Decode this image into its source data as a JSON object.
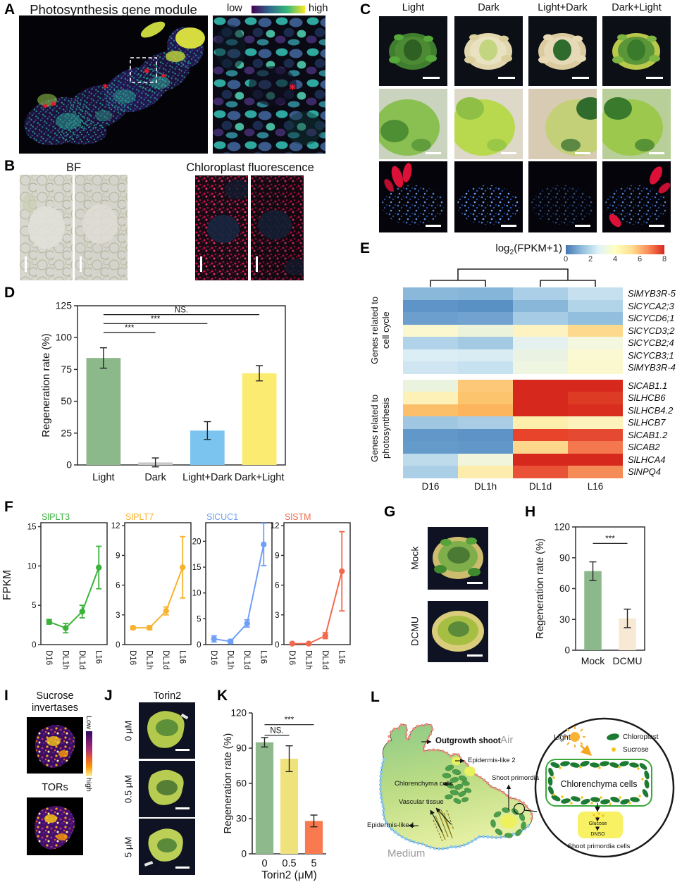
{
  "figure": {
    "panelA": {
      "label": "A",
      "title": "Photosynthesis gene module",
      "colorbar_low": "low",
      "colorbar_high": "high"
    },
    "panelB": {
      "label": "B",
      "bf_title": "BF",
      "fluo_title": "Chloroplast fluorescence"
    },
    "panelC": {
      "label": "C",
      "columns": [
        "Light",
        "Dark",
        "Light+Dark",
        "Dark+Light"
      ]
    },
    "panelD": {
      "label": "D"
    },
    "panelE": {
      "label": "E",
      "legend_prefix": "log",
      "legend_sub": "2",
      "legend_suffix": "(FPKM+1)"
    },
    "panelF": {
      "label": "F",
      "ylabel": "FPKM"
    },
    "panelG": {
      "label": "G",
      "conditions": [
        "Mock",
        "DCMU"
      ]
    },
    "panelH": {
      "label": "H"
    },
    "panelI": {
      "label": "I",
      "title1_line1": "Sucrose",
      "title1_line2": "invertases",
      "title2": "TORs",
      "colorbar_top": "Low",
      "colorbar_bottom": "high"
    },
    "panelJ": {
      "label": "J",
      "title": "Torin2",
      "doses": [
        "0 μM",
        "0.5 μM",
        "5 μM"
      ]
    },
    "panelK": {
      "label": "K"
    },
    "panelL": {
      "label": "L",
      "labels": {
        "outgrowth": "Outgrowth shoot",
        "air": "Air",
        "epi2": "Epidermis-like 2",
        "chlorenchyma": "Chlorenchyma cells",
        "primordia": "Shoot primordia",
        "vascular": "Vascular tissue",
        "epi1": "Epidermis-like 1",
        "medium": "Medium",
        "light": "Light",
        "chloroplast": "Chloroplast",
        "sucrose": "Sucrose",
        "cell": "Chlorenchyma cells",
        "glucose": "Glucose",
        "dnso": "DNSO",
        "primordia_cells": "Shoot primordia cells"
      }
    }
  },
  "chart_data": [
    {
      "id": "D",
      "type": "bar",
      "panel": "D",
      "categories": [
        "Light",
        "Dark",
        "Light+Dark",
        "Dark+Light"
      ],
      "values": [
        84,
        2,
        27,
        72
      ],
      "errors": [
        8,
        3.5,
        7,
        6
      ],
      "colors": [
        "#8cb98c",
        "#c9c9c9",
        "#7cc4f0",
        "#fbeb70"
      ],
      "ylabel": "Regeneration rate (%)",
      "ylim": [
        0,
        125
      ],
      "yticks": [
        0,
        25,
        50,
        75,
        100,
        125
      ],
      "significance": [
        {
          "from": 0,
          "to": 1,
          "label": "***",
          "y": 104
        },
        {
          "from": 0,
          "to": 2,
          "label": "***",
          "y": 111
        },
        {
          "from": 0,
          "to": 3,
          "label": "NS.",
          "y": 118
        }
      ]
    },
    {
      "id": "F1",
      "type": "line",
      "title": "SlPLT3",
      "color": "#3bb33b",
      "x": [
        "D16",
        "DL1h",
        "DL1d",
        "L16"
      ],
      "values": [
        2.9,
        2.1,
        4.2,
        9.8
      ],
      "errors": [
        0.3,
        0.6,
        0.8,
        2.7
      ],
      "ylim": [
        0,
        15.5
      ],
      "yticks": [
        0,
        5,
        10,
        15
      ]
    },
    {
      "id": "F2",
      "type": "line",
      "title": "SlPLT7",
      "color": "#f7b32b",
      "x": [
        "D16",
        "DL1h",
        "DL1d",
        "L16"
      ],
      "values": [
        1.7,
        1.7,
        3.4,
        7.8
      ],
      "errors": [
        0.15,
        0.2,
        0.4,
        3.1
      ],
      "ylim": [
        0,
        12.3
      ],
      "yticks": [
        0,
        3,
        6,
        9,
        12
      ]
    },
    {
      "id": "F3",
      "type": "line",
      "title": "SlCUC1",
      "color": "#6f9ff7",
      "x": [
        "D16",
        "DL1h",
        "DL1d",
        "L16"
      ],
      "values": [
        1.1,
        0.6,
        4.1,
        19.4
      ],
      "errors": [
        0.6,
        0.4,
        0.7,
        4.1
      ],
      "ylim": [
        0,
        23.6
      ],
      "yticks": [
        0,
        5,
        10,
        15,
        20
      ]
    },
    {
      "id": "F4",
      "type": "line",
      "title": "SlSTM",
      "color": "#f4694e",
      "x": [
        "D16",
        "DL1h",
        "DL1d",
        "L16"
      ],
      "values": [
        0.1,
        0.1,
        0.9,
        7.4
      ],
      "errors": [
        0.05,
        0.05,
        0.3,
        4.0
      ],
      "ylim": [
        0,
        12.3
      ],
      "yticks": [
        0,
        3,
        6,
        9,
        12
      ]
    },
    {
      "id": "H",
      "type": "bar",
      "panel": "H",
      "categories": [
        "Mock",
        "DCMU"
      ],
      "values": [
        77,
        31
      ],
      "errors": [
        9,
        9
      ],
      "colors": [
        "#8cb98c",
        "#f7e9d4"
      ],
      "ylabel": "Regeneration rate (%)",
      "ylim": [
        0,
        120
      ],
      "yticks": [
        0,
        30,
        60,
        90,
        120
      ],
      "significance": [
        {
          "from": 0,
          "to": 1,
          "label": "***",
          "y": 104
        }
      ]
    },
    {
      "id": "K",
      "type": "bar",
      "panel": "K",
      "categories": [
        "0",
        "0.5",
        "5"
      ],
      "values": [
        95,
        81,
        28
      ],
      "errors": [
        4,
        11,
        5
      ],
      "colors": [
        "#8db98d",
        "#efe27d",
        "#f87a4e"
      ],
      "ylabel": "Regeneration rate (%)",
      "xlabel": "Torin2 (μM)",
      "ylim": [
        0,
        120
      ],
      "yticks": [
        0,
        30,
        60,
        90,
        120
      ],
      "significance": [
        {
          "from": 0,
          "to": 1,
          "label": "NS.",
          "y": 101
        },
        {
          "from": 0,
          "to": 2,
          "label": "***",
          "y": 110
        }
      ]
    },
    {
      "id": "E",
      "type": "heatmap",
      "title": "log2(FPKM+1)",
      "columns": [
        "D16",
        "DL1h",
        "DL1d",
        "L16"
      ],
      "colorbar": {
        "ticks": [
          0,
          2,
          4,
          6,
          8
        ],
        "gradient": [
          "#4575b4",
          "#91bfdb",
          "#e0f3f8",
          "#ffffbf",
          "#fee090",
          "#fc8d59",
          "#d7281e"
        ]
      },
      "groups": [
        {
          "label_line1": "Genes related to",
          "label_line2": "cell cycle",
          "rows": [
            {
              "gene": "SlMYB3R-5",
              "colors": [
                "#8ab8db",
                "#85b5d9",
                "#aacfe6",
                "#c6e0f0"
              ]
            },
            {
              "gene": "SlCYCA2;3",
              "colors": [
                "#5e94c7",
                "#5a91c5",
                "#88b7da",
                "#b1d4e9"
              ]
            },
            {
              "gene": "SlCYCD6;1",
              "colors": [
                "#6d9fce",
                "#72a3d0",
                "#a6cce5",
                "#93bfde"
              ]
            },
            {
              "gene": "SlCYCD3;2",
              "colors": [
                "#fbf8cf",
                "#ecf3db",
                "#fdf3c2",
                "#fcd98c"
              ]
            },
            {
              "gene": "SlCYCB2;4",
              "colors": [
                "#b0d3e9",
                "#a3c9e3",
                "#e4f1ee",
                "#f4f7df"
              ]
            },
            {
              "gene": "SlCYCB3;1",
              "colors": [
                "#dceef5",
                "#d9ecf4",
                "#eaf3e3",
                "#fbf9d1"
              ]
            },
            {
              "gene": "SlMYB3R-4",
              "colors": [
                "#cfe6f2",
                "#c6e1f0",
                "#eef5e1",
                "#fbf8cf"
              ]
            }
          ]
        },
        {
          "label_line1": "Genes related to",
          "label_line2": "photosynthesis",
          "rows": [
            {
              "gene": "SlCAB1.1",
              "colors": [
                "#eaf3dd",
                "#fdc877",
                "#d7281e",
                "#d7281e"
              ]
            },
            {
              "gene": "SlLHCB6",
              "colors": [
                "#fdf1b8",
                "#fdc46e",
                "#d7281e",
                "#dd3b24"
              ]
            },
            {
              "gene": "SlLHCB4.2",
              "colors": [
                "#fcbf69",
                "#fcb45d",
                "#d7281e",
                "#d92d20"
              ]
            },
            {
              "gene": "SlLHCB7",
              "colors": [
                "#9fc7e2",
                "#a9cde5",
                "#fdeeab",
                "#fdf2bb"
              ]
            },
            {
              "gene": "SlCAB1.2",
              "colors": [
                "#6297c9",
                "#5d93c6",
                "#e8442c",
                "#e64931"
              ]
            },
            {
              "gene": "SlCAB2",
              "colors": [
                "#659bcb",
                "#6297c9",
                "#fdd88c",
                "#f4774d"
              ]
            },
            {
              "gene": "SlLHCA4",
              "colors": [
                "#bedbec",
                "#f0f5dc",
                "#d7281e",
                "#d7281e"
              ]
            },
            {
              "gene": "SlNPQ4",
              "colors": [
                "#abcfe6",
                "#fdedad",
                "#ea5238",
                "#f58b57"
              ]
            }
          ]
        }
      ]
    }
  ],
  "colors": {
    "viridis_low_high": [
      "#440154",
      "#30678d",
      "#35b778",
      "#fde724"
    ],
    "magma_top_bottom": [
      "#2c0a5e",
      "#71196e",
      "#a62f77",
      "#e55c30",
      "#fb9b06",
      "#fcf4a4"
    ],
    "accent_red_asterisk": "#e8192c"
  }
}
